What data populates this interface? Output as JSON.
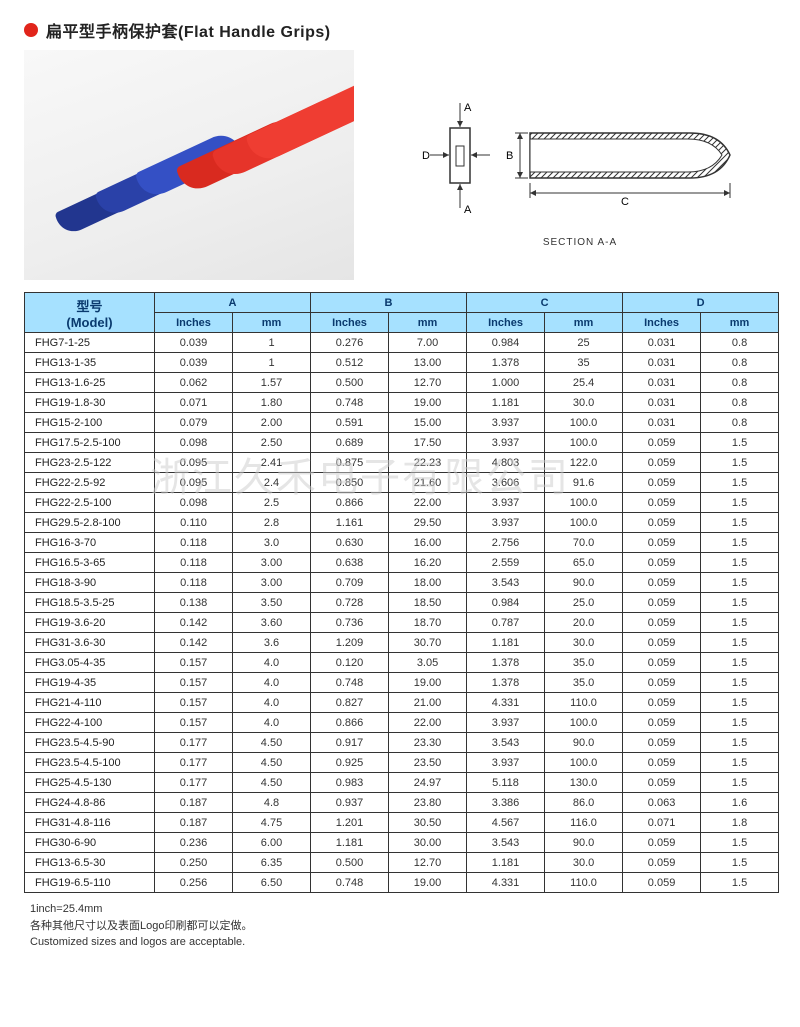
{
  "title": "扁平型手柄保护套(Flat Handle Grips)",
  "diagram": {
    "caption": "SECTION A-A",
    "labels": {
      "A": "A",
      "B": "B",
      "C": "C",
      "D": "D"
    }
  },
  "watermark": "浙江久禾电子有限公司",
  "table": {
    "header_model": "型号",
    "header_model_en": "(Model)",
    "groups": [
      "A",
      "B",
      "C",
      "D"
    ],
    "sub": [
      "Inches",
      "mm"
    ],
    "rows": [
      [
        "FHG7-1-25",
        "0.039",
        "1",
        "0.276",
        "7.00",
        "0.984",
        "25",
        "0.031",
        "0.8"
      ],
      [
        "FHG13-1-35",
        "0.039",
        "1",
        "0.512",
        "13.00",
        "1.378",
        "35",
        "0.031",
        "0.8"
      ],
      [
        "FHG13-1.6-25",
        "0.062",
        "1.57",
        "0.500",
        "12.70",
        "1.000",
        "25.4",
        "0.031",
        "0.8"
      ],
      [
        "FHG19-1.8-30",
        "0.071",
        "1.80",
        "0.748",
        "19.00",
        "1.181",
        "30.0",
        "0.031",
        "0.8"
      ],
      [
        "FHG15-2-100",
        "0.079",
        "2.00",
        "0.591",
        "15.00",
        "3.937",
        "100.0",
        "0.031",
        "0.8"
      ],
      [
        "FHG17.5-2.5-100",
        "0.098",
        "2.50",
        "0.689",
        "17.50",
        "3.937",
        "100.0",
        "0.059",
        "1.5"
      ],
      [
        "FHG23-2.5-122",
        "0.095",
        "2.41",
        "0.875",
        "22.23",
        "4.803",
        "122.0",
        "0.059",
        "1.5"
      ],
      [
        "FHG22-2.5-92",
        "0.095",
        "2.4",
        "0.850",
        "21.60",
        "3.606",
        "91.6",
        "0.059",
        "1.5"
      ],
      [
        "FHG22-2.5-100",
        "0.098",
        "2.5",
        "0.866",
        "22.00",
        "3.937",
        "100.0",
        "0.059",
        "1.5"
      ],
      [
        "FHG29.5-2.8-100",
        "0.110",
        "2.8",
        "1.161",
        "29.50",
        "3.937",
        "100.0",
        "0.059",
        "1.5"
      ],
      [
        "FHG16-3-70",
        "0.118",
        "3.0",
        "0.630",
        "16.00",
        "2.756",
        "70.0",
        "0.059",
        "1.5"
      ],
      [
        "FHG16.5-3-65",
        "0.118",
        "3.00",
        "0.638",
        "16.20",
        "2.559",
        "65.0",
        "0.059",
        "1.5"
      ],
      [
        "FHG18-3-90",
        "0.118",
        "3.00",
        "0.709",
        "18.00",
        "3.543",
        "90.0",
        "0.059",
        "1.5"
      ],
      [
        "FHG18.5-3.5-25",
        "0.138",
        "3.50",
        "0.728",
        "18.50",
        "0.984",
        "25.0",
        "0.059",
        "1.5"
      ],
      [
        "FHG19-3.6-20",
        "0.142",
        "3.60",
        "0.736",
        "18.70",
        "0.787",
        "20.0",
        "0.059",
        "1.5"
      ],
      [
        "FHG31-3.6-30",
        "0.142",
        "3.6",
        "1.209",
        "30.70",
        "1.181",
        "30.0",
        "0.059",
        "1.5"
      ],
      [
        "FHG3.05-4-35",
        "0.157",
        "4.0",
        "0.120",
        "3.05",
        "1.378",
        "35.0",
        "0.059",
        "1.5"
      ],
      [
        "FHG19-4-35",
        "0.157",
        "4.0",
        "0.748",
        "19.00",
        "1.378",
        "35.0",
        "0.059",
        "1.5"
      ],
      [
        "FHG21-4-110",
        "0.157",
        "4.0",
        "0.827",
        "21.00",
        "4.331",
        "110.0",
        "0.059",
        "1.5"
      ],
      [
        "FHG22-4-100",
        "0.157",
        "4.0",
        "0.866",
        "22.00",
        "3.937",
        "100.0",
        "0.059",
        "1.5"
      ],
      [
        "FHG23.5-4.5-90",
        "0.177",
        "4.50",
        "0.917",
        "23.30",
        "3.543",
        "90.0",
        "0.059",
        "1.5"
      ],
      [
        "FHG23.5-4.5-100",
        "0.177",
        "4.50",
        "0.925",
        "23.50",
        "3.937",
        "100.0",
        "0.059",
        "1.5"
      ],
      [
        "FHG25-4.5-130",
        "0.177",
        "4.50",
        "0.983",
        "24.97",
        "5.118",
        "130.0",
        "0.059",
        "1.5"
      ],
      [
        "FHG24-4.8-86",
        "0.187",
        "4.8",
        "0.937",
        "23.80",
        "3.386",
        "86.0",
        "0.063",
        "1.6"
      ],
      [
        "FHG31-4.8-116",
        "0.187",
        "4.75",
        "1.201",
        "30.50",
        "4.567",
        "116.0",
        "0.071",
        "1.8"
      ],
      [
        "FHG30-6-90",
        "0.236",
        "6.00",
        "1.181",
        "30.00",
        "3.543",
        "90.0",
        "0.059",
        "1.5"
      ],
      [
        "FHG13-6.5-30",
        "0.250",
        "6.35",
        "0.500",
        "12.70",
        "1.181",
        "30.0",
        "0.059",
        "1.5"
      ],
      [
        "FHG19-6.5-110",
        "0.256",
        "6.50",
        "0.748",
        "19.00",
        "4.331",
        "110.0",
        "0.059",
        "1.5"
      ]
    ]
  },
  "footnotes": [
    "1inch=25.4mm",
    "各种其他尺寸以及表面Logo印刷都可以定做。",
    "Customized sizes and logos are acceptable."
  ],
  "colors": {
    "bullet": "#e1251b",
    "th_bg": "#a6e1ff",
    "th_text": "#0a3a6e",
    "border": "#333333"
  }
}
